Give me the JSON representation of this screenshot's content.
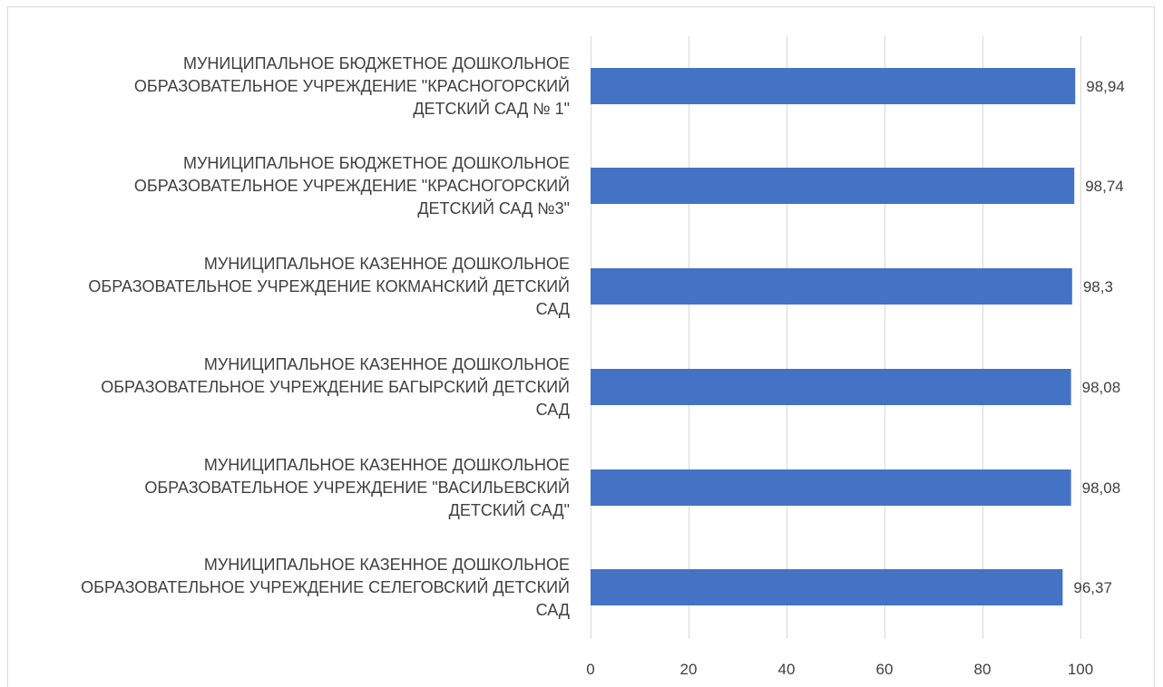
{
  "chart_data": {
    "type": "bar",
    "orientation": "horizontal",
    "categories": [
      [
        "МУНИЦИПАЛЬНОЕ БЮДЖЕТНОЕ ДОШКОЛЬНОЕ",
        "ОБРАЗОВАТЕЛЬНОЕ УЧРЕЖДЕНИЕ \"КРАСНОГОРСКИЙ",
        "ДЕТСКИЙ САД № 1\""
      ],
      [
        "МУНИЦИПАЛЬНОЕ БЮДЖЕТНОЕ ДОШКОЛЬНОЕ",
        "ОБРАЗОВАТЕЛЬНОЕ УЧРЕЖДЕНИЕ \"КРАСНОГОРСКИЙ",
        "ДЕТСКИЙ САД №3\""
      ],
      [
        "МУНИЦИПАЛЬНОЕ КАЗЕННОЕ ДОШКОЛЬНОЕ",
        "ОБРАЗОВАТЕЛЬНОЕ УЧРЕЖДЕНИЕ КОКМАНСКИЙ ДЕТСКИЙ",
        "САД"
      ],
      [
        "МУНИЦИПАЛЬНОЕ КАЗЕННОЕ ДОШКОЛЬНОЕ",
        "ОБРАЗОВАТЕЛЬНОЕ УЧРЕЖДЕНИЕ БАГЫРСКИЙ ДЕТСКИЙ",
        "САД"
      ],
      [
        "МУНИЦИПАЛЬНОЕ КАЗЕННОЕ ДОШКОЛЬНОЕ",
        "ОБРАЗОВАТЕЛЬНОЕ УЧРЕЖДЕНИЕ \"ВАСИЛЬЕВСКИЙ",
        "ДЕТСКИЙ САД\""
      ],
      [
        "МУНИЦИПАЛЬНОЕ КАЗЕННОЕ ДОШКОЛЬНОЕ",
        "ОБРАЗОВАТЕЛЬНОЕ УЧРЕЖДЕНИЕ СЕЛЕГОВСКИЙ ДЕТСКИЙ",
        "САД"
      ]
    ],
    "values": [
      98.94,
      98.74,
      98.3,
      98.08,
      98.08,
      96.37
    ],
    "data_labels": [
      "98,94",
      "98,74",
      "98,3",
      "98,08",
      "98,08",
      "96,37"
    ],
    "xlim": [
      0,
      100
    ],
    "x_ticks": [
      0,
      20,
      40,
      60,
      80,
      100
    ],
    "x_tick_labels": [
      "0",
      "20",
      "40",
      "60",
      "80",
      "100"
    ],
    "title": "",
    "xlabel": "",
    "ylabel": "",
    "grid": "vertical",
    "legend": "none",
    "bar_color": "#4472c4",
    "grid_color": "#d9d9d9"
  }
}
